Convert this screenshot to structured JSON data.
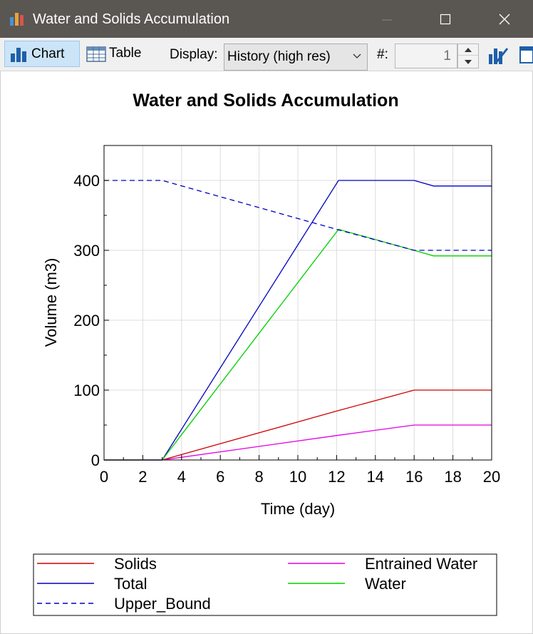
{
  "window": {
    "title": "Water and Solids Accumulation"
  },
  "toolbar": {
    "chart_label": "Chart",
    "table_label": "Table",
    "display_label": "Display:",
    "display_value": "History (high res)",
    "number_label": "#:",
    "number_value": "1"
  },
  "colors": {
    "titlebar": "#5a5652",
    "solids": "#d00000",
    "total": "#0000c0",
    "upper_bound": "#0000c0",
    "entrained_water": "#e000e0",
    "water": "#00d000",
    "grid": "#dcdcdc"
  },
  "chart_data": {
    "type": "line",
    "title": "Water and Solids Accumulation",
    "xlabel": "Time (day)",
    "ylabel": "Volume (m3)",
    "xlim": [
      0,
      20
    ],
    "ylim": [
      0,
      450
    ],
    "xticks": [
      0,
      2,
      4,
      6,
      8,
      10,
      12,
      14,
      16,
      18,
      20
    ],
    "yticks": [
      0,
      100,
      200,
      300,
      400
    ],
    "grid": true,
    "legend_position": "bottom",
    "series": [
      {
        "name": "Solids",
        "color": "#d00000",
        "dash": false,
        "points": [
          [
            0,
            0
          ],
          [
            3,
            0
          ],
          [
            12,
            70
          ],
          [
            16,
            100
          ],
          [
            20,
            100
          ]
        ]
      },
      {
        "name": "Entrained Water",
        "color": "#e000e0",
        "dash": false,
        "points": [
          [
            0,
            0
          ],
          [
            3,
            0
          ],
          [
            12,
            35
          ],
          [
            16,
            50
          ],
          [
            20,
            50
          ]
        ]
      },
      {
        "name": "Total",
        "color": "#0000c0",
        "dash": false,
        "points": [
          [
            0,
            0
          ],
          [
            3,
            0
          ],
          [
            12.1,
            400
          ],
          [
            16,
            400
          ],
          [
            17,
            392
          ],
          [
            20,
            392
          ]
        ]
      },
      {
        "name": "Water",
        "color": "#00d000",
        "dash": false,
        "points": [
          [
            0,
            0
          ],
          [
            3,
            0
          ],
          [
            12.1,
            330
          ],
          [
            16,
            300
          ],
          [
            17,
            292
          ],
          [
            20,
            292
          ]
        ]
      },
      {
        "name": "Upper_Bound",
        "color": "#0000c0",
        "dash": true,
        "points": [
          [
            0,
            400
          ],
          [
            3,
            400
          ],
          [
            12,
            330
          ],
          [
            16,
            300
          ],
          [
            20,
            300
          ]
        ]
      }
    ]
  }
}
